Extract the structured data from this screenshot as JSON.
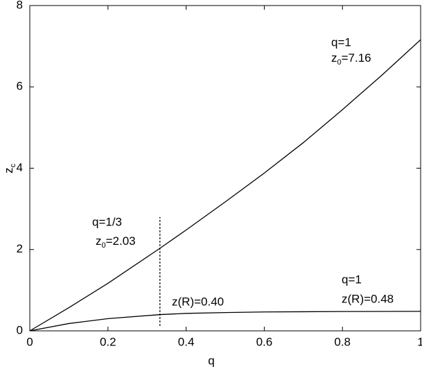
{
  "chart_data": {
    "type": "line",
    "xlabel": "q",
    "ylabel": {
      "base": "z",
      "sub": "c"
    },
    "x": [
      0,
      0.1,
      0.2,
      0.333,
      0.4,
      0.5,
      0.6,
      0.7,
      0.8,
      0.9,
      1
    ],
    "series": [
      {
        "color": "#000000",
        "values": [
          0,
          0.57,
          1.17,
          2.03,
          2.48,
          3.17,
          3.88,
          4.63,
          5.44,
          6.28,
          7.16
        ]
      },
      {
        "color": "#000000",
        "values": [
          0,
          0.18,
          0.3,
          0.4,
          0.43,
          0.45,
          0.465,
          0.47,
          0.475,
          0.478,
          0.48
        ]
      }
    ],
    "marker": {
      "x": 0.333,
      "y": [
        0.12,
        2.8
      ]
    },
    "xlim": [
      0,
      1
    ],
    "ylim": [
      0,
      8
    ],
    "xticks": [
      0,
      0.2,
      0.4,
      0.6,
      0.8,
      1
    ],
    "yticks": [
      0,
      2,
      4,
      6,
      8
    ],
    "annotations": [
      {
        "text": "q=1"
      },
      {
        "base": "z",
        "sub": "0",
        "rest": "=7.16"
      },
      {
        "text": "q=1/3"
      },
      {
        "base": "z",
        "sub": "0",
        "rest": "=2.03"
      },
      {
        "text": "z(R)=0.40"
      },
      {
        "text": "q=1"
      },
      {
        "text": "z(R)=0.48"
      }
    ]
  }
}
